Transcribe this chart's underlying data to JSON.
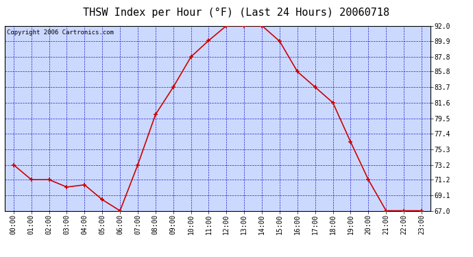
{
  "title": "THSW Index per Hour (°F) (Last 24 Hours) 20060718",
  "copyright": "Copyright 2006 Cartronics.com",
  "hours": [
    "00:00",
    "01:00",
    "02:00",
    "03:00",
    "04:00",
    "05:00",
    "06:00",
    "07:00",
    "08:00",
    "09:00",
    "10:00",
    "11:00",
    "12:00",
    "13:00",
    "14:00",
    "15:00",
    "16:00",
    "17:00",
    "18:00",
    "19:00",
    "20:00",
    "21:00",
    "22:00",
    "23:00"
  ],
  "values": [
    73.2,
    71.2,
    71.2,
    70.2,
    70.5,
    68.5,
    67.0,
    73.2,
    80.0,
    83.7,
    87.8,
    90.0,
    92.0,
    92.0,
    92.0,
    89.9,
    85.8,
    83.7,
    81.6,
    76.3,
    71.2,
    67.0,
    67.0,
    67.0
  ],
  "ylim": [
    67.0,
    92.0
  ],
  "yticks": [
    67.0,
    69.1,
    71.2,
    73.2,
    75.3,
    77.4,
    79.5,
    81.6,
    83.7,
    85.8,
    87.8,
    89.9,
    92.0
  ],
  "line_color": "#cc0000",
  "marker_color": "#cc0000",
  "bg_color": "#ccd9ff",
  "fig_bg": "#ffffff",
  "grid_color": "#0000bb",
  "title_fontsize": 11,
  "tick_fontsize": 7,
  "copyright_fontsize": 6.5,
  "title_font": "DejaVu Sans",
  "tick_font": "Courier New"
}
